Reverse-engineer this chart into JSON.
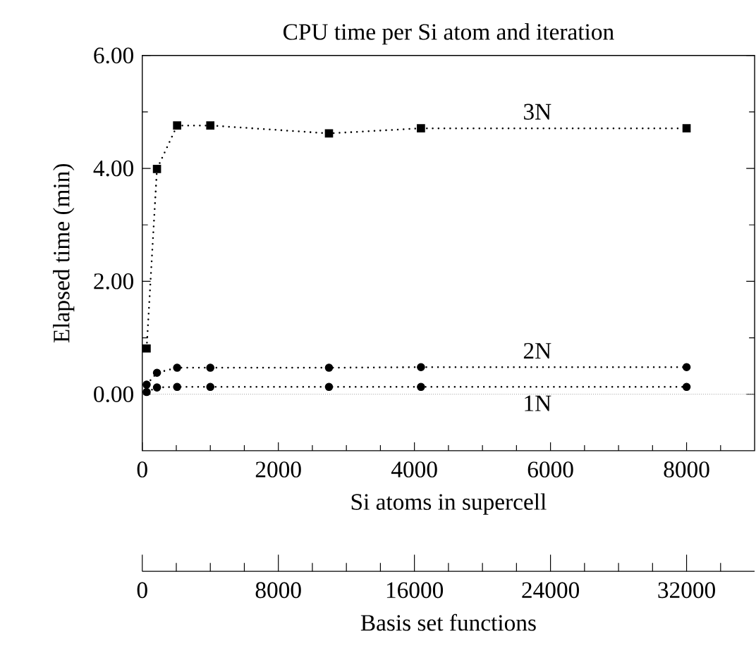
{
  "chart_data": {
    "type": "line",
    "title": "CPU time per Si atom and iteration",
    "xlabel": "Si atoms in supercell",
    "ylabel": "Elapsed time (min)",
    "x2label": "Basis set functions",
    "x": [
      64,
      216,
      512,
      1000,
      2744,
      4096,
      8000
    ],
    "series": [
      {
        "name": "3N",
        "color": "#000000",
        "marker": "square",
        "values": [
          0.81,
          3.99,
          4.76,
          4.76,
          4.62,
          4.71,
          4.71
        ]
      },
      {
        "name": "2N",
        "color": "#000000",
        "marker": "circle",
        "values": [
          0.17,
          0.38,
          0.47,
          0.47,
          0.47,
          0.48,
          0.48
        ]
      },
      {
        "name": "1N",
        "color": "#000000",
        "marker": "circle",
        "values": [
          0.04,
          0.12,
          0.13,
          0.13,
          0.13,
          0.13,
          0.13
        ]
      }
    ],
    "line_style": "dotted",
    "grid": false,
    "legend": false,
    "xlim": [
      0,
      9000
    ],
    "xticks": [
      0,
      {
        "value": 500,
        "label": null
      },
      {
        "value": 1000,
        "label": null
      },
      {
        "value": 1500,
        "label": null
      },
      2000,
      {
        "value": 2500,
        "label": null
      },
      {
        "value": 3000,
        "label": null
      },
      {
        "value": 3500,
        "label": null
      },
      4000,
      {
        "value": 4500,
        "label": null
      },
      {
        "value": 5000,
        "label": null
      },
      {
        "value": 5500,
        "label": null
      },
      6000,
      {
        "value": 6500,
        "label": null
      },
      {
        "value": 7000,
        "label": null
      },
      {
        "value": 7500,
        "label": null
      },
      8000,
      {
        "value": 8500,
        "label": null
      }
    ],
    "ylim": [
      -1,
      6
    ],
    "yticks": [
      {
        "value": 0,
        "label": "0.00"
      },
      {
        "value": 1,
        "label": null
      },
      {
        "value": 2,
        "label": "2.00"
      },
      {
        "value": 3,
        "label": null
      },
      {
        "value": 4,
        "label": "4.00"
      },
      {
        "value": 5,
        "label": null
      },
      {
        "value": 6,
        "label": "6.00"
      }
    ],
    "x2lim": [
      0,
      36000
    ],
    "x2ticks": [
      0,
      {
        "value": 2000,
        "label": null
      },
      {
        "value": 4000,
        "label": null
      },
      {
        "value": 6000,
        "label": null
      },
      8000,
      {
        "value": 10000,
        "label": null
      },
      {
        "value": 12000,
        "label": null
      },
      {
        "value": 14000,
        "label": null
      },
      16000,
      {
        "value": 18000,
        "label": null
      },
      {
        "value": 20000,
        "label": null
      },
      {
        "value": 22000,
        "label": null
      },
      24000,
      {
        "value": 26000,
        "label": null
      },
      {
        "value": 28000,
        "label": null
      },
      {
        "value": 30000,
        "label": null
      },
      32000,
      {
        "value": 34000,
        "label": null
      }
    ],
    "ref_lines": [
      {
        "axis": "y",
        "value": 0,
        "color": "#999999",
        "line_style": "dotted"
      }
    ]
  }
}
